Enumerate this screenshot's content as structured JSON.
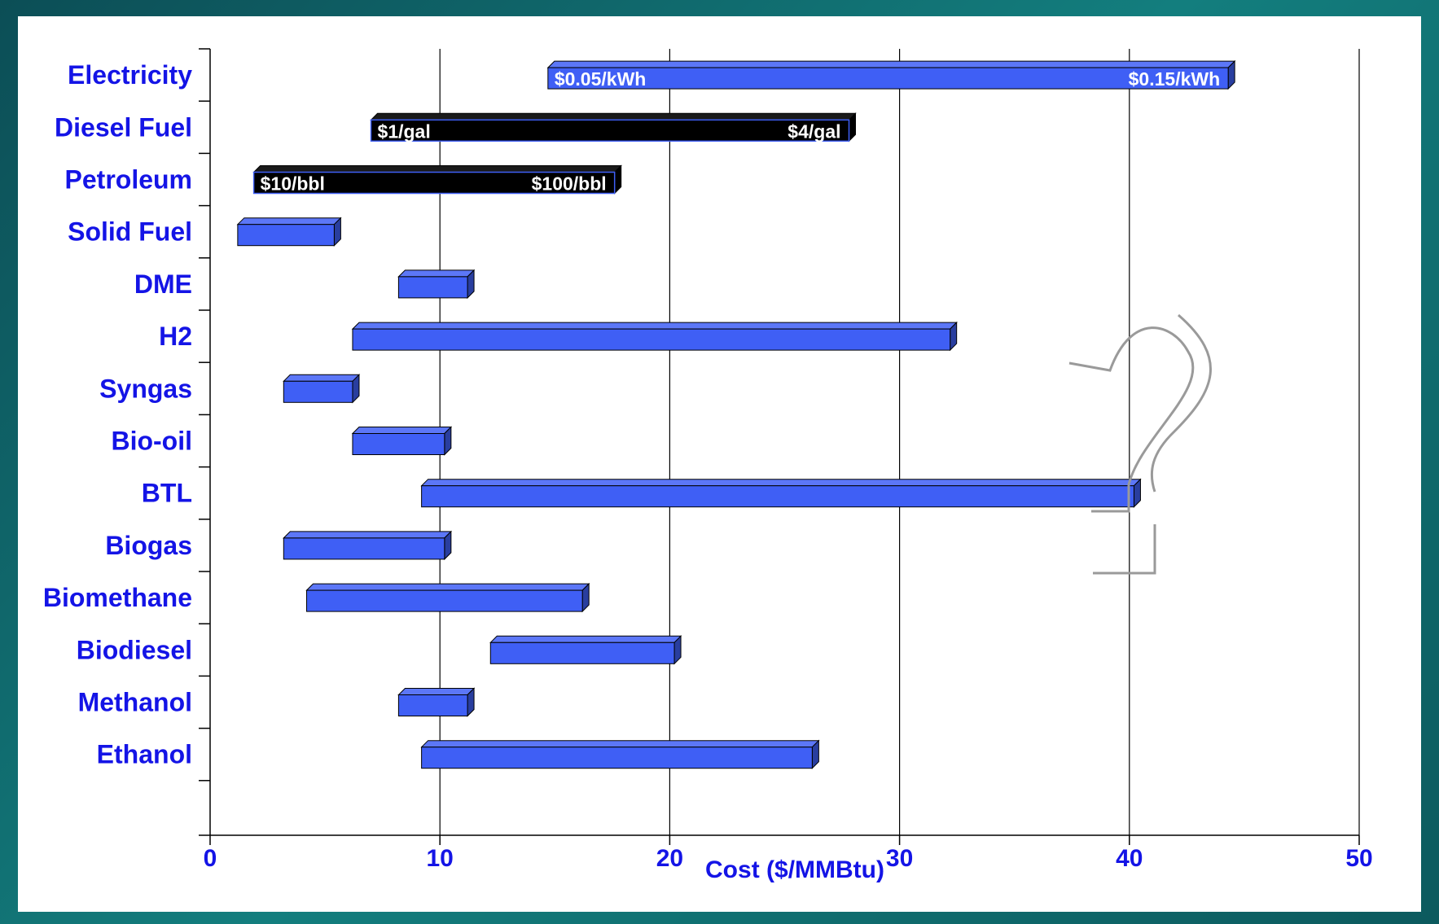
{
  "chart_data": {
    "type": "bar",
    "orientation": "horizontal-range",
    "title": "",
    "xlabel": "Cost ($/MMBtu)",
    "ylabel": "",
    "xlim": [
      0,
      50
    ],
    "xticks": [
      0,
      10,
      20,
      30,
      40,
      50
    ],
    "grid": "vertical",
    "categories": [
      "Electricity",
      "Diesel Fuel",
      "Petroleum",
      "Solid Fuel",
      "DME",
      "H2",
      "Syngas",
      "Bio-oil",
      "BTL",
      "Biogas",
      "Biomethane",
      "Biodiesel",
      "Methanol",
      "Ethanol"
    ],
    "ranges": [
      {
        "category": "Electricity",
        "low": 14.7,
        "high": 44.3,
        "color": "#3f5ff5",
        "low_label": "$0.05/kWh",
        "high_label": "$0.15/kWh"
      },
      {
        "category": "Diesel Fuel",
        "low": 7.0,
        "high": 27.8,
        "color": "#000000",
        "low_label": "$1/gal",
        "high_label": "$4/gal"
      },
      {
        "category": "Petroleum",
        "low": 1.9,
        "high": 17.6,
        "color": "#000000",
        "low_label": "$10/bbl",
        "high_label": "$100/bbl"
      },
      {
        "category": "Solid Fuel",
        "low": 1.2,
        "high": 5.4,
        "color": "#3f5ff5"
      },
      {
        "category": "DME",
        "low": 8.2,
        "high": 11.2,
        "color": "#3f5ff5"
      },
      {
        "category": "H2",
        "low": 6.2,
        "high": 32.2,
        "color": "#3f5ff5"
      },
      {
        "category": "Syngas",
        "low": 3.2,
        "high": 6.2,
        "color": "#3f5ff5"
      },
      {
        "category": "Bio-oil",
        "low": 6.2,
        "high": 10.2,
        "color": "#3f5ff5"
      },
      {
        "category": "BTL",
        "low": 9.2,
        "high": 40.2,
        "color": "#3f5ff5"
      },
      {
        "category": "Biogas",
        "low": 3.2,
        "high": 10.2,
        "color": "#3f5ff5"
      },
      {
        "category": "Biomethane",
        "low": 4.2,
        "high": 16.2,
        "color": "#3f5ff5"
      },
      {
        "category": "Biodiesel",
        "low": 12.2,
        "high": 20.2,
        "color": "#3f5ff5"
      },
      {
        "category": "Methanol",
        "low": 8.2,
        "high": 11.2,
        "color": "#3f5ff5"
      },
      {
        "category": "Ethanol",
        "low": 9.2,
        "high": 26.2,
        "color": "#3f5ff5"
      }
    ]
  }
}
